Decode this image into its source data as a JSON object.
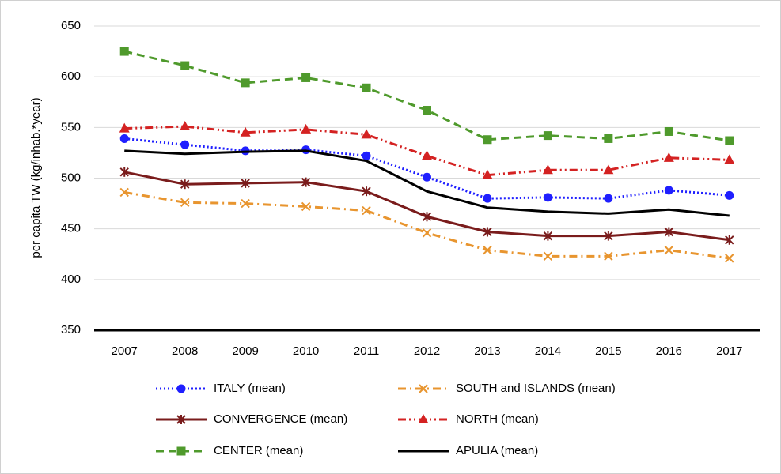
{
  "chart_data": {
    "type": "line",
    "y_label": "per capita TW (kg/inhab.*year)",
    "categories": [
      "2007",
      "2008",
      "2009",
      "2010",
      "2011",
      "2012",
      "2013",
      "2014",
      "2015",
      "2016",
      "2017"
    ],
    "ylim": [
      350,
      650
    ],
    "yticks": [
      350,
      400,
      450,
      500,
      550,
      600,
      650
    ],
    "grid": true,
    "series": [
      {
        "name": "ITALY (mean)",
        "color": "#1f1fff",
        "dash": "dotted",
        "marker": "circle",
        "values": [
          539,
          533,
          527,
          528,
          522,
          501,
          480,
          481,
          480,
          488,
          483
        ]
      },
      {
        "name": "SOUTH and ISLANDS (mean)",
        "color": "#e8952f",
        "dash": "dash-dot",
        "marker": "x",
        "values": [
          486,
          476,
          475,
          472,
          468,
          446,
          429,
          423,
          423,
          429,
          421
        ]
      },
      {
        "name": "CONVERGENCE (mean)",
        "color": "#7a1c1c",
        "dash": "solid",
        "marker": "asterisk",
        "values": [
          506,
          494,
          495,
          496,
          487,
          462,
          447,
          443,
          443,
          447,
          439
        ]
      },
      {
        "name": "NORTH (mean)",
        "color": "#d42222",
        "dash": "dash-dot-dot",
        "marker": "triangle",
        "values": [
          549,
          551,
          545,
          548,
          543,
          522,
          503,
          508,
          508,
          520,
          518
        ]
      },
      {
        "name": "CENTER (mean)",
        "color": "#4f9a2c",
        "dash": "dashed",
        "marker": "square",
        "values": [
          625,
          611,
          594,
          599,
          589,
          567,
          538,
          542,
          539,
          546,
          537
        ]
      },
      {
        "name": "APULIA (mean)",
        "color": "#000000",
        "dash": "solid",
        "marker": "none",
        "values": [
          527,
          524,
          526,
          527,
          517,
          487,
          471,
          467,
          465,
          469,
          463
        ]
      }
    ]
  }
}
